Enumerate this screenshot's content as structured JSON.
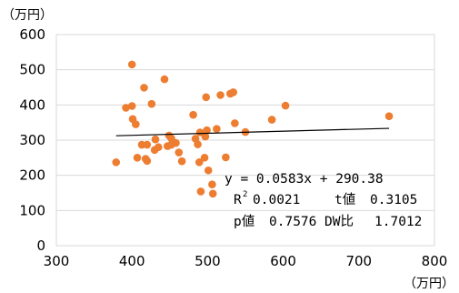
{
  "chart_data": {
    "type": "scatter",
    "x_unit": "（万円）",
    "y_unit": "（万円）",
    "xlim": [
      300,
      800
    ],
    "ylim": [
      0,
      600
    ],
    "x_ticks": [
      "300",
      "400",
      "500",
      "600",
      "700",
      "800"
    ],
    "y_ticks": [
      "0",
      "100",
      "200",
      "300",
      "400",
      "500",
      "600"
    ],
    "grid": true,
    "marker_color": "#ED7D31",
    "trendline_color": "#000000",
    "points": [
      [
        379,
        237
      ],
      [
        392,
        392
      ],
      [
        400,
        515
      ],
      [
        400,
        397
      ],
      [
        401,
        360
      ],
      [
        405,
        345
      ],
      [
        407,
        250
      ],
      [
        413,
        287
      ],
      [
        416,
        449
      ],
      [
        418,
        247
      ],
      [
        420,
        241
      ],
      [
        420,
        287
      ],
      [
        426,
        403
      ],
      [
        430,
        272
      ],
      [
        431,
        302
      ],
      [
        435,
        280
      ],
      [
        443,
        473
      ],
      [
        447,
        283
      ],
      [
        449,
        313
      ],
      [
        452,
        287
      ],
      [
        452,
        305
      ],
      [
        458,
        292
      ],
      [
        462,
        265
      ],
      [
        466,
        240
      ],
      [
        481,
        372
      ],
      [
        484,
        304
      ],
      [
        487,
        288
      ],
      [
        489,
        237
      ],
      [
        490,
        322
      ],
      [
        491,
        154
      ],
      [
        496,
        250
      ],
      [
        497,
        310
      ],
      [
        498,
        422
      ],
      [
        499,
        328
      ],
      [
        501,
        214
      ],
      [
        506,
        174
      ],
      [
        507,
        148
      ],
      [
        512,
        332
      ],
      [
        517,
        428
      ],
      [
        524,
        251
      ],
      [
        530,
        432
      ],
      [
        534,
        436
      ],
      [
        536,
        348
      ],
      [
        550,
        323
      ],
      [
        585,
        358
      ],
      [
        603,
        398
      ],
      [
        740,
        368
      ]
    ],
    "trendline": {
      "x": [
        379,
        740
      ],
      "slope": 0.0583,
      "intercept": 290.38
    },
    "annotation": {
      "equation": "y = 0.0583x + 290.38",
      "r2_label": "R",
      "r2_sup": "2",
      "r2_value": "0.0021",
      "t_label": "t値",
      "t_value": "0.3105",
      "p_label": "p値",
      "p_value": "0.7576",
      "dw_label": "DW比",
      "dw_value": "1.7012"
    }
  }
}
